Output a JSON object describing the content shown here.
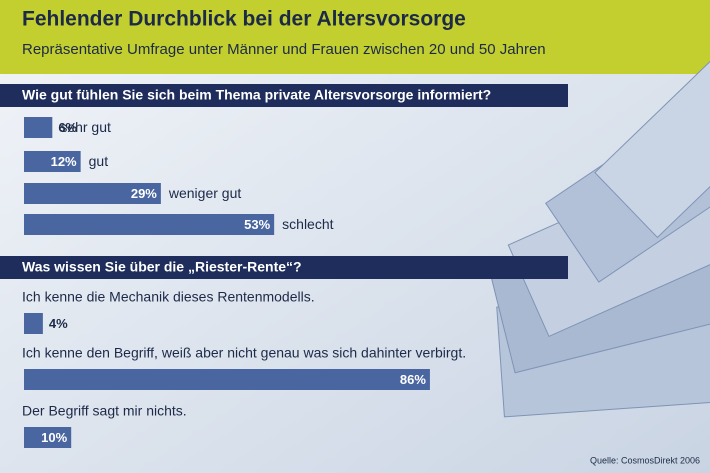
{
  "header": {
    "title": "Fehlender Durchblick bei der Altersvorsorge",
    "subtitle": "Repräsentative Umfrage unter Männer und Frauen zwischen 20 und 50 Jahren"
  },
  "chart_data": [
    {
      "type": "bar",
      "orientation": "horizontal",
      "title": "Wie gut fühlen Sie sich beim Thema private Altersvorsorge informiert?",
      "categories": [
        "sehr gut",
        "gut",
        "weniger gut",
        "schlecht"
      ],
      "values": [
        6,
        12,
        29,
        53
      ],
      "value_labels": [
        "6%",
        "12%",
        "29%",
        "53%"
      ],
      "color": "#4a66a0"
    },
    {
      "type": "bar",
      "orientation": "horizontal",
      "title": "Was wissen Sie über die „Riester-Rente“?",
      "categories": [
        "Ich kenne die Mechanik dieses Rentenmodells.",
        "Ich kenne den Begriff, weiß aber nicht genau was sich dahinter verbirgt.",
        "Der Begriff sagt mir nichts."
      ],
      "values": [
        4,
        86,
        10
      ],
      "value_labels": [
        "4%",
        "86%",
        "10%"
      ],
      "color": "#4a66a0"
    }
  ],
  "source": "Quelle: CosmosDirekt 2006"
}
